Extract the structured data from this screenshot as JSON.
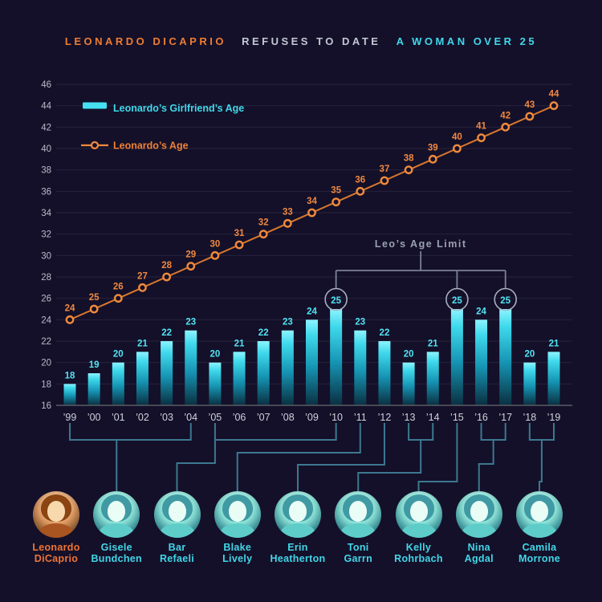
{
  "title": {
    "part1": "LEONARDO DICAPRIO",
    "part2": "REFUSES TO DATE",
    "part3": "A WOMAN OVER 25"
  },
  "chart_data": {
    "type": "bar",
    "title": "Leonardo DiCaprio refuses to date a woman over 25",
    "categories": [
      "’99",
      "’00",
      "’01",
      "’02",
      "’03",
      "’04",
      "’05",
      "’06",
      "’07",
      "’08",
      "’09",
      "’10",
      "’11",
      "’12",
      "’13",
      "’14",
      "’15",
      "’16",
      "’17",
      "’18",
      "’19"
    ],
    "series": [
      {
        "name": "Leonardo’s Girlfriend’s Age",
        "type": "bar",
        "color": "#45e1f2",
        "values": [
          18,
          19,
          20,
          21,
          22,
          23,
          20,
          21,
          22,
          23,
          24,
          25,
          23,
          22,
          20,
          21,
          25,
          24,
          25,
          20,
          21
        ]
      },
      {
        "name": "Leonardo’s Age",
        "type": "line",
        "color": "#e8823a",
        "values": [
          24,
          25,
          26,
          27,
          28,
          29,
          30,
          31,
          32,
          33,
          34,
          35,
          36,
          37,
          38,
          39,
          40,
          41,
          42,
          43,
          44
        ]
      }
    ],
    "ylim": [
      16,
      46
    ],
    "yticks": [
      16,
      18,
      20,
      22,
      24,
      26,
      28,
      30,
      32,
      34,
      36,
      38,
      40,
      42,
      44,
      46
    ],
    "grid": true,
    "legend_position": "top-left",
    "annotation": {
      "label": "Leo’s Age Limit",
      "circled_categories": [
        "’10",
        "’15",
        "’17"
      ]
    }
  },
  "people": [
    {
      "name_lines": [
        "Leonardo",
        "DiCaprio"
      ],
      "role": "subject"
    },
    {
      "name_lines": [
        "Gisele",
        "Bundchen"
      ],
      "years_from": "’99",
      "years_to": "’04"
    },
    {
      "name_lines": [
        "Bar",
        "Refaeli"
      ],
      "years_from": "’05",
      "years_to": "’10"
    },
    {
      "name_lines": [
        "Blake",
        "Lively"
      ],
      "years_from": "’11",
      "years_to": "’11"
    },
    {
      "name_lines": [
        "Erin",
        "Heatherton"
      ],
      "years_from": "’12",
      "years_to": "’12"
    },
    {
      "name_lines": [
        "Toni",
        "Garrn"
      ],
      "years_from": "’13",
      "years_to": "’14"
    },
    {
      "name_lines": [
        "Kelly",
        "Rohrbach"
      ],
      "years_from": "’15",
      "years_to": "’15"
    },
    {
      "name_lines": [
        "Nina",
        "Agdal"
      ],
      "years_from": "’16",
      "years_to": "’17"
    },
    {
      "name_lines": [
        "Camila",
        "Morrone"
      ],
      "years_from": "’18",
      "years_to": "’19"
    }
  ],
  "colors": {
    "background": "#141029",
    "title_orange": "#ef7d33",
    "title_gray": "#c3c8d4",
    "title_cyan": "#3fd8ea",
    "bar_label": "#52e4f4",
    "bar_top": "#8df4ff",
    "bar_mid": "#2fc9e0",
    "bar_bottom": "#0a2f40",
    "line": "#d8772f",
    "line_marker": "#f08a3c",
    "line_label": "#ef8840",
    "grid": "rgba(205,210,235,0.10)",
    "axis": "#5a5b66",
    "ytick": "#b9bcc8",
    "year_label": "#ced1dc",
    "annotation_gray": "#9aa1b4",
    "bracket_gray": "#7b8396",
    "ring_gray": "#a8aec0",
    "connector": "#3d7890",
    "name_cyan": "#41d7e8",
    "name_orange": "#ef7434"
  }
}
